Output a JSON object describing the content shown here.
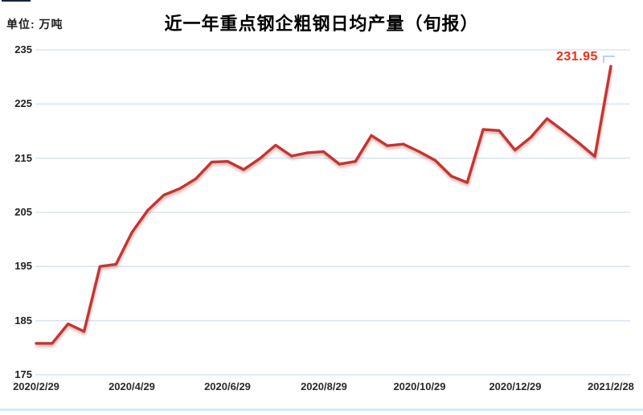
{
  "header": {
    "unit_label": "单位: 万吨",
    "title": "近一年重点钢企粗钢日均产量（旬报）"
  },
  "chart_data": {
    "type": "line",
    "title": "近一年重点钢企粗钢日均产量（旬报）",
    "unit": "万吨",
    "categories": [
      "2020/2/29",
      "2020/3/10",
      "2020/3/20",
      "2020/3/31",
      "2020/4/10",
      "2020/4/20",
      "2020/4/30",
      "2020/5/10",
      "2020/5/20",
      "2020/5/31",
      "2020/6/10",
      "2020/6/20",
      "2020/6/30",
      "2020/7/10",
      "2020/7/20",
      "2020/7/31",
      "2020/8/10",
      "2020/8/20",
      "2020/8/31",
      "2020/9/10",
      "2020/9/20",
      "2020/9/30",
      "2020/10/10",
      "2020/10/20",
      "2020/10/31",
      "2020/11/10",
      "2020/11/20",
      "2020/11/30",
      "2020/12/10",
      "2020/12/20",
      "2020/12/31",
      "2021/1/10",
      "2021/1/20",
      "2021/1/31",
      "2021/2/10",
      "2021/2/20",
      "2021/2/28"
    ],
    "values": [
      180.8,
      180.8,
      184.4,
      183.0,
      195.0,
      195.4,
      201.3,
      205.4,
      208.2,
      209.4,
      211.2,
      214.3,
      214.4,
      212.9,
      214.9,
      217.4,
      215.4,
      216.0,
      216.2,
      213.9,
      214.4,
      219.2,
      217.3,
      217.6,
      216.2,
      214.6,
      211.7,
      210.5,
      220.3,
      220.1,
      216.5,
      218.9,
      222.3,
      220.1,
      217.8,
      215.3,
      231.95
    ],
    "x_tick_labels": [
      "2020/2/29",
      "2020/4/29",
      "2020/6/29",
      "2020/8/29",
      "2020/10/29",
      "2020/12/29",
      "2021/2/28"
    ],
    "x_tick_indices": [
      0,
      6,
      12,
      18,
      24,
      30,
      36
    ],
    "y_ticks": [
      175,
      185,
      195,
      205,
      215,
      225,
      235
    ],
    "ylim": [
      175,
      235
    ],
    "grid": true,
    "legend_position": "none",
    "line_color": "#c23531",
    "gridline_color": "#d9e5f3",
    "annotation": {
      "text": "231.95",
      "point_index": 36,
      "color": "#ea3323"
    }
  }
}
